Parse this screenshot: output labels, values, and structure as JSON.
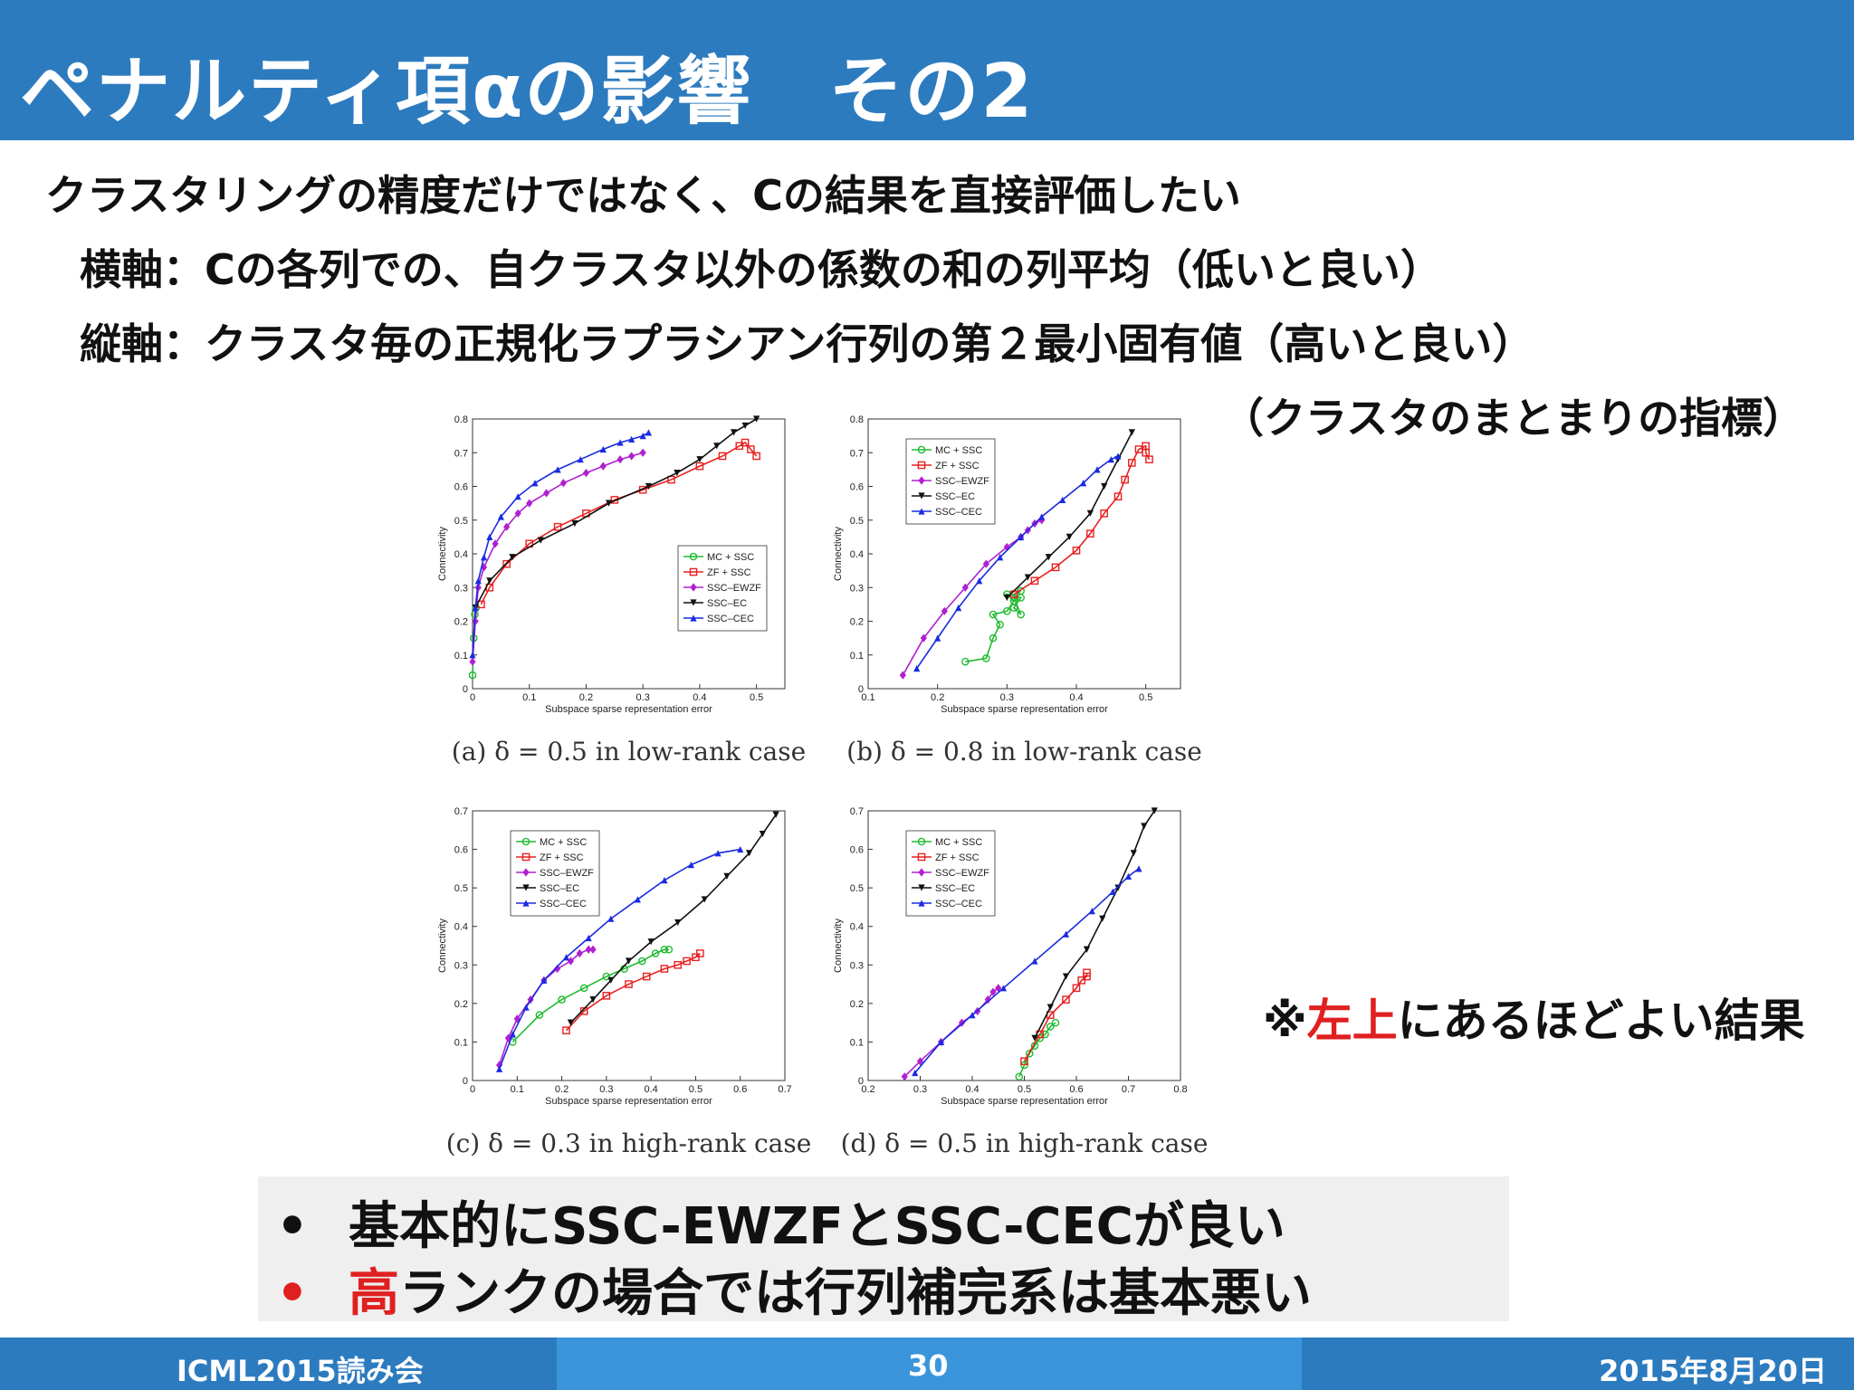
{
  "title": "ペナルティ項αの影響　その2",
  "body": {
    "line1": "クラスタリングの精度だけではなく、Cの結果を直接評価したい",
    "line2": "横軸：Cの各列での、自クラスタ以外の係数の和の列平均（低いと良い）",
    "line3": "縦軸：クラスタ毎の正規化ラプラシアン行列の第２最小固有値（高いと良い）",
    "line4": "（クラスタのまとまりの指標）"
  },
  "note": {
    "prefix": "※",
    "highlight": "左上",
    "suffix": "にあるほどよい結果"
  },
  "summary": {
    "bullet": "•",
    "item1": "基本的にSSC-EWZFとSSC-CECが良い",
    "item2_highlight": "高",
    "item2_rest": "ランクの場合では行列補完系は基本悪い"
  },
  "footer": {
    "left": "ICML2015読み会",
    "center": "30",
    "right": "2015年8月20日"
  },
  "colors": {
    "title_bar": "#2d7bbf",
    "footer_mid": "#3a95db",
    "highlight": "#e02020",
    "MC + SSC": "#22bb33",
    "ZF + SSC": "#e82020",
    "SSC–EWZF": "#b020d0",
    "SSC–EC": "#111111",
    "SSC–CEC": "#1a2be0"
  },
  "chart_data": [
    {
      "type": "line",
      "caption": "(a) δ = 0.5 in low-rank case",
      "xlabel": "Subspace sparse representation error",
      "ylabel": "Connectivity",
      "xlim": [
        0,
        0.55
      ],
      "ylim": [
        0,
        0.8
      ],
      "xticks": [
        "0",
        "0.1",
        "0.2",
        "0.3",
        "0.4",
        "0.5"
      ],
      "yticks": [
        "0",
        "0.1",
        "0.2",
        "0.3",
        "0.4",
        "0.5",
        "0.6",
        "0.7",
        "0.8"
      ],
      "legend": "center-right",
      "series": [
        {
          "name": "MC + SSC",
          "marker": "o",
          "points": [
            [
              0.0,
              0.04
            ],
            [
              0.002,
              0.15
            ],
            [
              0.004,
              0.22
            ],
            [
              0.006,
              0.24
            ]
          ]
        },
        {
          "name": "ZF + SSC",
          "marker": "s",
          "points": [
            [
              0.015,
              0.25
            ],
            [
              0.03,
              0.3
            ],
            [
              0.06,
              0.37
            ],
            [
              0.1,
              0.43
            ],
            [
              0.15,
              0.48
            ],
            [
              0.2,
              0.52
            ],
            [
              0.25,
              0.56
            ],
            [
              0.3,
              0.59
            ],
            [
              0.35,
              0.62
            ],
            [
              0.4,
              0.66
            ],
            [
              0.44,
              0.69
            ],
            [
              0.47,
              0.72
            ],
            [
              0.48,
              0.73
            ],
            [
              0.49,
              0.71
            ],
            [
              0.5,
              0.69
            ]
          ]
        },
        {
          "name": "SSC–EWZF",
          "marker": "d",
          "points": [
            [
              0.0,
              0.08
            ],
            [
              0.005,
              0.2
            ],
            [
              0.01,
              0.3
            ],
            [
              0.02,
              0.36
            ],
            [
              0.04,
              0.43
            ],
            [
              0.06,
              0.48
            ],
            [
              0.08,
              0.52
            ],
            [
              0.1,
              0.55
            ],
            [
              0.13,
              0.58
            ],
            [
              0.16,
              0.61
            ],
            [
              0.2,
              0.64
            ],
            [
              0.23,
              0.66
            ],
            [
              0.26,
              0.68
            ],
            [
              0.28,
              0.69
            ],
            [
              0.3,
              0.7
            ]
          ]
        },
        {
          "name": "SSC–EC",
          "marker": "v",
          "points": [
            [
              0.005,
              0.24
            ],
            [
              0.03,
              0.32
            ],
            [
              0.07,
              0.39
            ],
            [
              0.12,
              0.44
            ],
            [
              0.18,
              0.49
            ],
            [
              0.24,
              0.55
            ],
            [
              0.31,
              0.6
            ],
            [
              0.36,
              0.64
            ],
            [
              0.4,
              0.68
            ],
            [
              0.43,
              0.72
            ],
            [
              0.46,
              0.76
            ],
            [
              0.48,
              0.78
            ],
            [
              0.5,
              0.8
            ]
          ]
        },
        {
          "name": "SSC–CEC",
          "marker": "^",
          "points": [
            [
              0.0,
              0.1
            ],
            [
              0.005,
              0.24
            ],
            [
              0.01,
              0.32
            ],
            [
              0.02,
              0.39
            ],
            [
              0.03,
              0.45
            ],
            [
              0.05,
              0.51
            ],
            [
              0.08,
              0.57
            ],
            [
              0.11,
              0.61
            ],
            [
              0.15,
              0.65
            ],
            [
              0.19,
              0.68
            ],
            [
              0.23,
              0.71
            ],
            [
              0.26,
              0.73
            ],
            [
              0.28,
              0.74
            ],
            [
              0.3,
              0.75
            ],
            [
              0.31,
              0.76
            ]
          ]
        }
      ]
    },
    {
      "type": "line",
      "caption": "(b) δ = 0.8 in low-rank case",
      "xlabel": "Subspace sparse representation error",
      "ylabel": "Connectivity",
      "xlim": [
        0.1,
        0.55
      ],
      "ylim": [
        0,
        0.8
      ],
      "xticks": [
        "0.1",
        "0.2",
        "0.3",
        "0.4",
        "0.5"
      ],
      "yticks": [
        "0",
        "0.1",
        "0.2",
        "0.3",
        "0.4",
        "0.5",
        "0.6",
        "0.7",
        "0.8"
      ],
      "legend": "top-left",
      "series": [
        {
          "name": "MC + SSC",
          "marker": "o",
          "points": [
            [
              0.24,
              0.08
            ],
            [
              0.27,
              0.09
            ],
            [
              0.28,
              0.15
            ],
            [
              0.29,
              0.19
            ],
            [
              0.28,
              0.22
            ],
            [
              0.3,
              0.23
            ],
            [
              0.31,
              0.26
            ],
            [
              0.3,
              0.28
            ],
            [
              0.32,
              0.27
            ],
            [
              0.31,
              0.24
            ],
            [
              0.32,
              0.22
            ],
            [
              0.31,
              0.27
            ],
            [
              0.32,
              0.29
            ]
          ]
        },
        {
          "name": "ZF + SSC",
          "marker": "s",
          "points": [
            [
              0.31,
              0.28
            ],
            [
              0.34,
              0.32
            ],
            [
              0.37,
              0.36
            ],
            [
              0.4,
              0.41
            ],
            [
              0.42,
              0.46
            ],
            [
              0.44,
              0.52
            ],
            [
              0.46,
              0.57
            ],
            [
              0.47,
              0.62
            ],
            [
              0.48,
              0.67
            ],
            [
              0.49,
              0.71
            ],
            [
              0.5,
              0.72
            ],
            [
              0.5,
              0.7
            ],
            [
              0.505,
              0.68
            ]
          ]
        },
        {
          "name": "SSC–EWZF",
          "marker": "d",
          "points": [
            [
              0.15,
              0.04
            ],
            [
              0.18,
              0.15
            ],
            [
              0.21,
              0.23
            ],
            [
              0.24,
              0.3
            ],
            [
              0.27,
              0.37
            ],
            [
              0.3,
              0.42
            ],
            [
              0.32,
              0.45
            ],
            [
              0.33,
              0.47
            ],
            [
              0.34,
              0.49
            ],
            [
              0.35,
              0.5
            ]
          ]
        },
        {
          "name": "SSC–EC",
          "marker": "v",
          "points": [
            [
              0.3,
              0.27
            ],
            [
              0.33,
              0.33
            ],
            [
              0.36,
              0.39
            ],
            [
              0.39,
              0.45
            ],
            [
              0.42,
              0.52
            ],
            [
              0.44,
              0.6
            ],
            [
              0.46,
              0.68
            ],
            [
              0.48,
              0.76
            ]
          ]
        },
        {
          "name": "SSC–CEC",
          "marker": "^",
          "points": [
            [
              0.17,
              0.06
            ],
            [
              0.2,
              0.15
            ],
            [
              0.23,
              0.24
            ],
            [
              0.26,
              0.32
            ],
            [
              0.29,
              0.39
            ],
            [
              0.32,
              0.45
            ],
            [
              0.35,
              0.51
            ],
            [
              0.38,
              0.56
            ],
            [
              0.41,
              0.61
            ],
            [
              0.43,
              0.65
            ],
            [
              0.45,
              0.68
            ],
            [
              0.46,
              0.69
            ]
          ]
        }
      ]
    },
    {
      "type": "line",
      "caption": "(c) δ = 0.3 in high-rank case",
      "xlabel": "Subspace sparse representation error",
      "ylabel": "Connectivity",
      "xlim": [
        0,
        0.7
      ],
      "ylim": [
        0,
        0.7
      ],
      "xticks": [
        "0",
        "0.1",
        "0.2",
        "0.3",
        "0.4",
        "0.5",
        "0.6",
        "0.7"
      ],
      "yticks": [
        "0",
        "0.1",
        "0.2",
        "0.3",
        "0.4",
        "0.5",
        "0.6",
        "0.7"
      ],
      "legend": "top-left",
      "series": [
        {
          "name": "MC + SSC",
          "marker": "o",
          "points": [
            [
              0.09,
              0.1
            ],
            [
              0.15,
              0.17
            ],
            [
              0.2,
              0.21
            ],
            [
              0.25,
              0.24
            ],
            [
              0.3,
              0.27
            ],
            [
              0.34,
              0.29
            ],
            [
              0.38,
              0.31
            ],
            [
              0.41,
              0.33
            ],
            [
              0.43,
              0.34
            ],
            [
              0.44,
              0.34
            ]
          ]
        },
        {
          "name": "ZF + SSC",
          "marker": "s",
          "points": [
            [
              0.21,
              0.13
            ],
            [
              0.25,
              0.18
            ],
            [
              0.3,
              0.22
            ],
            [
              0.35,
              0.25
            ],
            [
              0.39,
              0.27
            ],
            [
              0.43,
              0.29
            ],
            [
              0.46,
              0.3
            ],
            [
              0.48,
              0.31
            ],
            [
              0.5,
              0.32
            ],
            [
              0.51,
              0.33
            ]
          ]
        },
        {
          "name": "SSC–EWZF",
          "marker": "d",
          "points": [
            [
              0.06,
              0.04
            ],
            [
              0.08,
              0.11
            ],
            [
              0.1,
              0.16
            ],
            [
              0.13,
              0.21
            ],
            [
              0.16,
              0.26
            ],
            [
              0.19,
              0.29
            ],
            [
              0.22,
              0.31
            ],
            [
              0.24,
              0.33
            ],
            [
              0.26,
              0.34
            ],
            [
              0.27,
              0.34
            ]
          ]
        },
        {
          "name": "SSC–EC",
          "marker": "v",
          "points": [
            [
              0.22,
              0.15
            ],
            [
              0.27,
              0.21
            ],
            [
              0.31,
              0.26
            ],
            [
              0.35,
              0.31
            ],
            [
              0.4,
              0.36
            ],
            [
              0.46,
              0.41
            ],
            [
              0.52,
              0.47
            ],
            [
              0.57,
              0.53
            ],
            [
              0.62,
              0.59
            ],
            [
              0.65,
              0.64
            ],
            [
              0.68,
              0.69
            ]
          ]
        },
        {
          "name": "SSC–CEC",
          "marker": "^",
          "points": [
            [
              0.06,
              0.03
            ],
            [
              0.09,
              0.12
            ],
            [
              0.12,
              0.19
            ],
            [
              0.16,
              0.26
            ],
            [
              0.21,
              0.32
            ],
            [
              0.26,
              0.37
            ],
            [
              0.31,
              0.42
            ],
            [
              0.37,
              0.47
            ],
            [
              0.43,
              0.52
            ],
            [
              0.49,
              0.56
            ],
            [
              0.55,
              0.59
            ],
            [
              0.6,
              0.6
            ]
          ]
        }
      ]
    },
    {
      "type": "line",
      "caption": "(d) δ = 0.5 in high-rank case",
      "xlabel": "Subspace sparse representation error",
      "ylabel": "Connectivity",
      "xlim": [
        0.2,
        0.8
      ],
      "ylim": [
        0,
        0.7
      ],
      "xticks": [
        "0.2",
        "0.3",
        "0.4",
        "0.5",
        "0.6",
        "0.7",
        "0.8"
      ],
      "yticks": [
        "0",
        "0.1",
        "0.2",
        "0.3",
        "0.4",
        "0.5",
        "0.6",
        "0.7"
      ],
      "legend": "top-left",
      "series": [
        {
          "name": "MC + SSC",
          "marker": "o",
          "points": [
            [
              0.49,
              0.01
            ],
            [
              0.5,
              0.04
            ],
            [
              0.51,
              0.07
            ],
            [
              0.52,
              0.09
            ],
            [
              0.53,
              0.11
            ],
            [
              0.54,
              0.12
            ],
            [
              0.55,
              0.14
            ],
            [
              0.56,
              0.15
            ]
          ]
        },
        {
          "name": "ZF + SSC",
          "marker": "s",
          "points": [
            [
              0.5,
              0.05
            ],
            [
              0.53,
              0.12
            ],
            [
              0.55,
              0.17
            ],
            [
              0.58,
              0.21
            ],
            [
              0.6,
              0.24
            ],
            [
              0.61,
              0.26
            ],
            [
              0.62,
              0.27
            ],
            [
              0.62,
              0.28
            ]
          ]
        },
        {
          "name": "SSC–EWZF",
          "marker": "d",
          "points": [
            [
              0.27,
              0.01
            ],
            [
              0.3,
              0.05
            ],
            [
              0.34,
              0.1
            ],
            [
              0.38,
              0.15
            ],
            [
              0.41,
              0.18
            ],
            [
              0.43,
              0.21
            ],
            [
              0.44,
              0.23
            ],
            [
              0.45,
              0.24
            ]
          ]
        },
        {
          "name": "SSC–EC",
          "marker": "v",
          "points": [
            [
              0.52,
              0.11
            ],
            [
              0.55,
              0.19
            ],
            [
              0.58,
              0.27
            ],
            [
              0.62,
              0.34
            ],
            [
              0.65,
              0.42
            ],
            [
              0.68,
              0.5
            ],
            [
              0.71,
              0.59
            ],
            [
              0.73,
              0.66
            ],
            [
              0.75,
              0.7
            ]
          ]
        },
        {
          "name": "SSC–CEC",
          "marker": "^",
          "points": [
            [
              0.29,
              0.02
            ],
            [
              0.34,
              0.1
            ],
            [
              0.4,
              0.17
            ],
            [
              0.46,
              0.24
            ],
            [
              0.52,
              0.31
            ],
            [
              0.58,
              0.38
            ],
            [
              0.63,
              0.44
            ],
            [
              0.67,
              0.49
            ],
            [
              0.7,
              0.53
            ],
            [
              0.72,
              0.55
            ]
          ]
        }
      ]
    }
  ]
}
